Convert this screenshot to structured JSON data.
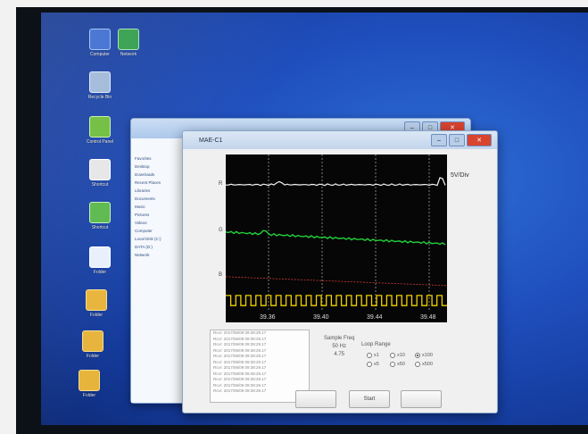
{
  "app": {
    "title": "MAE-C1",
    "unit_label": "5V/Div"
  },
  "channels": [
    "R",
    "G",
    "B"
  ],
  "time_ticks": [
    "39.36",
    "39.40",
    "39.44",
    "39.48"
  ],
  "sample": {
    "label": "Sample Freq",
    "value": "50 Hz",
    "value2": "4.75"
  },
  "loop_range": {
    "label": "Loop Range",
    "options": [
      {
        "label": "x1",
        "selected": false
      },
      {
        "label": "x10",
        "selected": false
      },
      {
        "label": "x100",
        "selected": true
      },
      {
        "label": "x5",
        "selected": false
      },
      {
        "label": "x50",
        "selected": false
      },
      {
        "label": "x500",
        "selected": false
      }
    ]
  },
  "buttons": {
    "b1": "",
    "start": "Start",
    "b3": ""
  },
  "log": [
    "Rcvr: 2017/06/09 09:39:29.17",
    "Rcvr: 2017/06/09 09:39:29.17",
    "Rcvr: 2017/06/09 09:39:29.17",
    "Rcvr: 2017/06/09 09:39:29.17",
    "Rcvr: 2017/06/09 09:39:29.17",
    "Rcvr: 2017/06/09 09:39:29.17",
    "Rcvr: 2017/06/09 09:39:29.17",
    "Rcvr: 2017/06/09 09:39:29.17",
    "Rcvr: 2017/06/09 09:39:29.17",
    "Rcvr: 2017/06/09 09:39:29.17",
    "Rcvr: 2017/06/09 09:39:29.17"
  ],
  "colors": {
    "trace_white": "#f2f2f2",
    "trace_green": "#22d13a",
    "trace_red": "#d23a3a",
    "trace_yellow": "#f0d000",
    "grid": "#cfcfcf"
  },
  "signals": {
    "white_level": 0.18,
    "green_level": 0.5,
    "red_level": 0.76,
    "square_low": 0.9,
    "square_high": 0.84,
    "square_cycles": 22
  },
  "explorer_sidebar": [
    "Favorites",
    "Desktop",
    "Downloads",
    "Recent Places",
    "Libraries",
    "Documents",
    "Music",
    "Pictures",
    "Videos",
    "Computer",
    "Local Disk (C:)",
    "DATA (D:)",
    "Network"
  ],
  "desktop_icons": [
    "Computer",
    "Network",
    "Recycle Bin",
    "Control Panel",
    "Shortcut",
    "Shortcut",
    "Folder",
    "Folder",
    "Folder",
    "Folder"
  ]
}
